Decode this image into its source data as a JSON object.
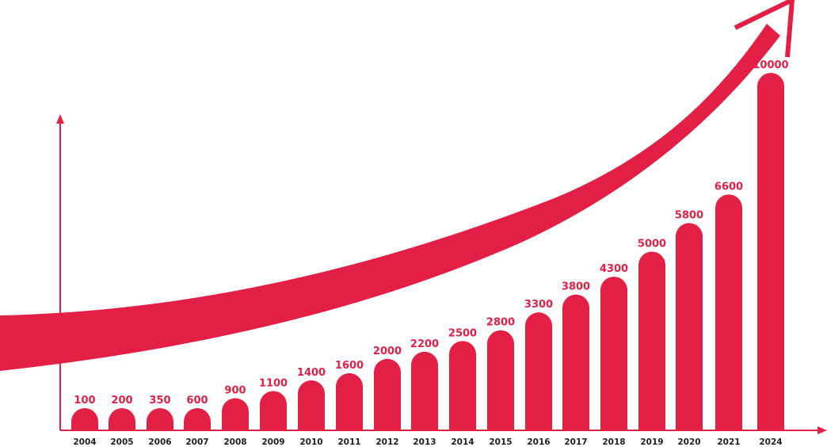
{
  "chart_data": {
    "type": "bar",
    "title": "",
    "xlabel": "",
    "ylabel": "",
    "categories": [
      "2004",
      "2005",
      "2006",
      "2007",
      "2008",
      "2009",
      "2010",
      "2011",
      "2012",
      "2013",
      "2014",
      "2015",
      "2016",
      "2017",
      "2018",
      "2019",
      "2020",
      "2021",
      "2024"
    ],
    "values": [
      100,
      200,
      350,
      600,
      900,
      1100,
      1400,
      1600,
      2000,
      2200,
      2500,
      2800,
      3300,
      3800,
      4300,
      5000,
      5800,
      6600,
      10000
    ],
    "value_labels": [
      "100",
      "200",
      "350",
      "600",
      "900",
      "1100",
      "1400",
      "1600",
      "2000",
      "2200",
      "2500",
      "2800",
      "3300",
      "3800",
      "4300",
      "5000",
      "5800",
      "6600",
      "10000"
    ],
    "grid": false,
    "legend": "none",
    "decoration": "upward-trend-arrow"
  },
  "colors": {
    "bar": "#e31f45",
    "arrow": "#e31f45",
    "axis": "#e31f45",
    "value_text": "#e31f45",
    "tick_text": "#222222"
  }
}
